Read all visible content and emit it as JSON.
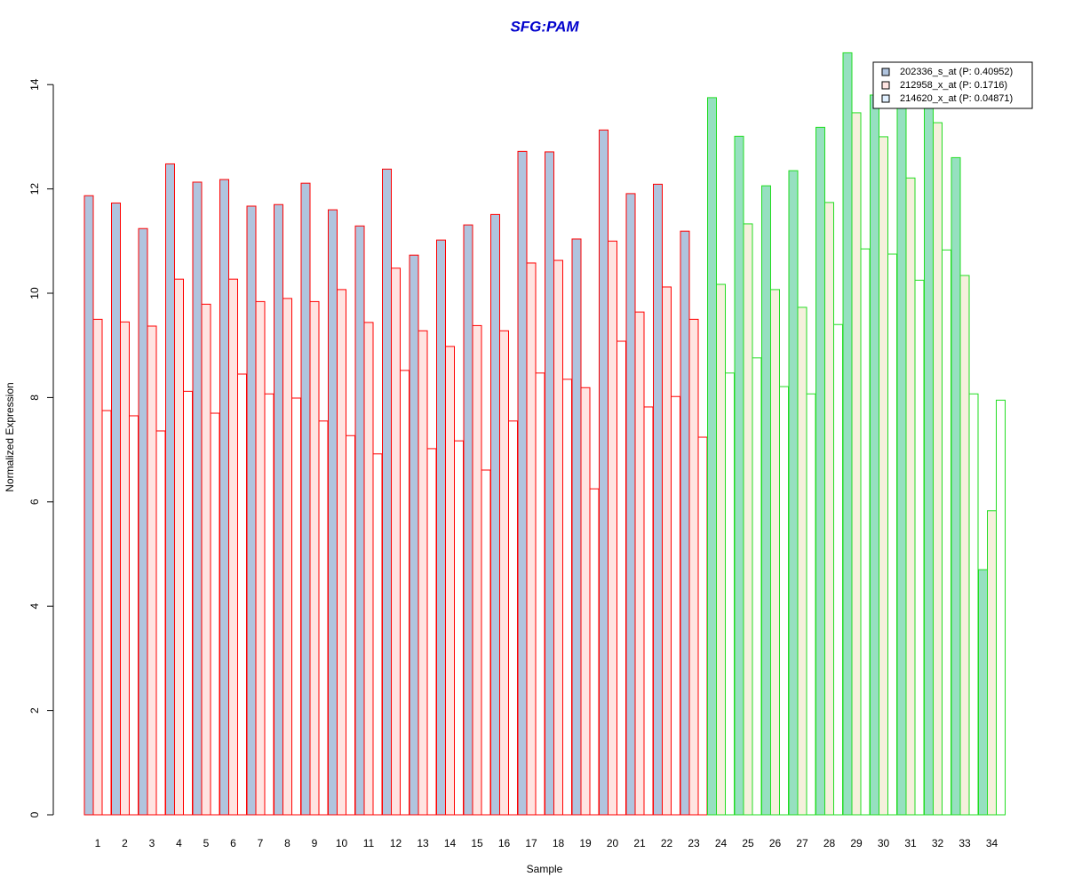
{
  "chart_data": {
    "type": "grouped_bar",
    "title": "SFG:PAM",
    "xlabel": "Sample",
    "ylabel": "Normalized Expression",
    "categories": [
      "1",
      "2",
      "3",
      "4",
      "5",
      "6",
      "7",
      "8",
      "9",
      "10",
      "11",
      "12",
      "13",
      "14",
      "15",
      "16",
      "17",
      "18",
      "19",
      "20",
      "21",
      "22",
      "23",
      "24",
      "25",
      "26",
      "27",
      "28",
      "29",
      "30",
      "31",
      "32",
      "33",
      "34"
    ],
    "edge_colors": [
      "#ff0000",
      "#ff0000",
      "#ff0000",
      "#ff0000",
      "#ff0000",
      "#ff0000",
      "#ff0000",
      "#ff0000",
      "#ff0000",
      "#ff0000",
      "#ff0000",
      "#ff0000",
      "#ff0000",
      "#ff0000",
      "#ff0000",
      "#ff0000",
      "#ff0000",
      "#ff0000",
      "#ff0000",
      "#ff0000",
      "#ff0000",
      "#ff0000",
      "#ff0000",
      "#22dd22",
      "#22dd22",
      "#22dd22",
      "#22dd22",
      "#22dd22",
      "#22dd22",
      "#22dd22",
      "#22dd22",
      "#22dd22",
      "#22dd22",
      "#22dd22"
    ],
    "series": [
      {
        "name": "202336_s_at (P: 0.40952)",
        "color": "#b0c4de",
        "colors": [
          "#b0c4de",
          "#b0c4de",
          "#b0c4de",
          "#b0c4de",
          "#b0c4de",
          "#b0c4de",
          "#b0c4de",
          "#b0c4de",
          "#b0c4de",
          "#b0c4de",
          "#b0c4de",
          "#b0c4de",
          "#b0c4de",
          "#b0c4de",
          "#b0c4de",
          "#b0c4de",
          "#b0c4de",
          "#b0c4de",
          "#b0c4de",
          "#b0c4de",
          "#b0c4de",
          "#b0c4de",
          "#b0c4de",
          "#96e0c0",
          "#96e0c0",
          "#96e0c0",
          "#96e0c0",
          "#96e0c0",
          "#96e0c0",
          "#96e0c0",
          "#96e0c0",
          "#96e0c0",
          "#96e0c0",
          "#96e0c0"
        ],
        "values": [
          11.87,
          11.73,
          11.24,
          12.48,
          12.13,
          12.18,
          11.67,
          11.7,
          12.11,
          11.6,
          11.29,
          12.38,
          10.73,
          11.02,
          11.31,
          11.51,
          12.72,
          12.71,
          11.04,
          13.13,
          11.91,
          12.09,
          11.19,
          13.75,
          13.01,
          12.06,
          12.35,
          13.18,
          14.61,
          13.8,
          13.6,
          13.7,
          12.6,
          4.7
        ]
      },
      {
        "name": "212958_x_at (P: 0.1716)",
        "color": "#ffe4e1",
        "colors": [
          "#ffe4e1",
          "#ffe4e1",
          "#ffe4e1",
          "#ffe4e1",
          "#ffe4e1",
          "#ffe4e1",
          "#ffe4e1",
          "#ffe4e1",
          "#ffe4e1",
          "#ffe4e1",
          "#ffe4e1",
          "#ffe4e1",
          "#ffe4e1",
          "#ffe4e1",
          "#ffe4e1",
          "#ffe4e1",
          "#ffe4e1",
          "#ffe4e1",
          "#ffe4e1",
          "#ffe4e1",
          "#ffe4e1",
          "#ffe4e1",
          "#ffe4e1",
          "#f5f0dc",
          "#f5f0dc",
          "#f5f0dc",
          "#f5f0dc",
          "#f5f0dc",
          "#f5f0dc",
          "#f5f0dc",
          "#f5f0dc",
          "#f5f0dc",
          "#f5f0dc",
          "#f5f0dc"
        ],
        "values": [
          9.5,
          9.45,
          9.37,
          10.27,
          9.79,
          10.27,
          9.84,
          9.9,
          9.84,
          10.07,
          9.44,
          10.48,
          9.28,
          8.98,
          9.38,
          9.28,
          10.58,
          10.63,
          8.19,
          11.0,
          9.64,
          10.12,
          9.5,
          10.17,
          11.33,
          10.07,
          9.73,
          11.74,
          13.46,
          13.0,
          12.21,
          13.27,
          10.34,
          5.83
        ]
      },
      {
        "name": "214620_x_at (P: 0.04871)",
        "color": "#e0f0ff",
        "colors": [
          "#ffffff",
          "#ffffff",
          "#ffffff",
          "#ffffff",
          "#ffffff",
          "#ffffff",
          "#ffffff",
          "#ffffff",
          "#ffffff",
          "#ffffff",
          "#ffffff",
          "#ffffff",
          "#ffffff",
          "#ffffff",
          "#ffffff",
          "#ffffff",
          "#ffffff",
          "#ffffff",
          "#ffffff",
          "#ffffff",
          "#ffffff",
          "#ffffff",
          "#ffffff",
          "#ffffff",
          "#ffffff",
          "#ffffff",
          "#ffffff",
          "#ffffff",
          "#ffffff",
          "#ffffff",
          "#ffffff",
          "#ffffff",
          "#ffffff",
          "#ffffff"
        ],
        "values": [
          7.75,
          7.65,
          7.36,
          8.12,
          7.7,
          8.45,
          8.07,
          7.99,
          7.55,
          7.27,
          6.92,
          8.52,
          7.02,
          7.17,
          6.61,
          7.55,
          8.47,
          8.35,
          6.25,
          9.08,
          7.82,
          8.02,
          7.24,
          8.47,
          8.76,
          8.21,
          8.07,
          9.4,
          10.85,
          10.75,
          10.25,
          10.83,
          8.07,
          7.95
        ]
      }
    ],
    "ylim": [
      0,
      14.6
    ],
    "yticks": [
      0,
      2,
      4,
      6,
      8,
      10,
      12,
      14
    ],
    "legend": "top-right"
  }
}
